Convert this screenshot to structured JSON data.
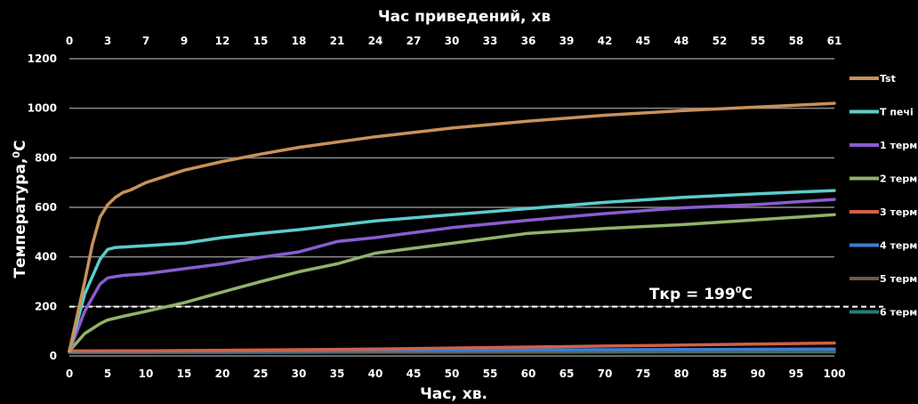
{
  "chart_data": {
    "type": "line",
    "title_top": "Час приведений, хв",
    "xlabel": "Час, хв.",
    "ylabel": "Температура,",
    "ylabel_unit": "°С",
    "xlim": [
      0,
      100
    ],
    "ylim": [
      0,
      1200
    ],
    "x_ticks": [
      0,
      5,
      10,
      15,
      20,
      25,
      30,
      35,
      40,
      45,
      50,
      55,
      60,
      65,
      70,
      75,
      80,
      85,
      90,
      95,
      100
    ],
    "y_ticks": [
      0,
      200,
      400,
      600,
      800,
      1000,
      1200
    ],
    "top_ticks": [
      "0",
      "3",
      "7",
      "9",
      "12",
      "15",
      "18",
      "21",
      "24",
      "27",
      "30",
      "33",
      "36",
      "39",
      "42",
      "45",
      "48",
      "52",
      "55",
      "58",
      "61"
    ],
    "grid": true,
    "legend_position": "right",
    "annotation": {
      "text": "Ткр = 199",
      "sup": "0",
      "suffix": "С",
      "value": 199
    },
    "series": [
      {
        "name": "Tst",
        "color": "#c8915a",
        "x": [
          0,
          2,
          3,
          4,
          5,
          6,
          7,
          8,
          10,
          15,
          20,
          25,
          30,
          40,
          50,
          60,
          70,
          80,
          90,
          100
        ],
        "y": [
          20,
          300,
          450,
          560,
          610,
          640,
          660,
          670,
          700,
          750,
          785,
          815,
          842,
          885,
          920,
          948,
          972,
          990,
          1005,
          1020
        ]
      },
      {
        "name": "T печі",
        "color": "#5ecbcb",
        "x": [
          0,
          2,
          4,
          5,
          6,
          10,
          15,
          20,
          25,
          30,
          40,
          50,
          60,
          70,
          80,
          90,
          100
        ],
        "y": [
          20,
          250,
          390,
          430,
          438,
          445,
          455,
          478,
          495,
          510,
          545,
          570,
          595,
          620,
          640,
          655,
          668
        ]
      },
      {
        "name": "1 терм",
        "color": "#8a5ccf",
        "x": [
          0,
          2,
          4,
          5,
          7,
          10,
          15,
          20,
          25,
          30,
          35,
          40,
          50,
          60,
          70,
          80,
          90,
          100
        ],
        "y": [
          20,
          180,
          290,
          315,
          325,
          332,
          352,
          372,
          398,
          420,
          462,
          478,
          518,
          548,
          575,
          598,
          612,
          632
        ]
      },
      {
        "name": "2 терм",
        "color": "#8fb36b",
        "x": [
          0,
          2,
          4,
          5,
          7,
          10,
          15,
          20,
          25,
          30,
          35,
          40,
          50,
          60,
          70,
          80,
          90,
          100
        ],
        "y": [
          20,
          90,
          130,
          145,
          160,
          180,
          215,
          258,
          300,
          340,
          372,
          415,
          455,
          495,
          515,
          530,
          550,
          570
        ]
      },
      {
        "name": "3 терм",
        "color": "#d0614b",
        "x": [
          0,
          10,
          20,
          30,
          40,
          50,
          60,
          70,
          80,
          90,
          100
        ],
        "y": [
          20,
          21,
          23,
          25,
          28,
          32,
          36,
          40,
          44,
          48,
          52
        ]
      },
      {
        "name": "4 терм",
        "color": "#3a7fd0",
        "x": [
          0,
          10,
          20,
          30,
          40,
          50,
          60,
          70,
          80,
          90,
          100
        ],
        "y": [
          18,
          19,
          20,
          21,
          22,
          23,
          24,
          25,
          26,
          27,
          28
        ]
      },
      {
        "name": "5 терм",
        "color": "#6b5a45",
        "x": [
          0,
          20,
          40,
          60,
          80,
          100
        ],
        "y": [
          16,
          17,
          18,
          19,
          20,
          21
        ]
      },
      {
        "name": "6 терм",
        "color": "#2a7a7a",
        "x": [
          0,
          20,
          40,
          60,
          80,
          100
        ],
        "y": [
          14,
          14,
          15,
          15,
          16,
          16
        ]
      }
    ]
  }
}
